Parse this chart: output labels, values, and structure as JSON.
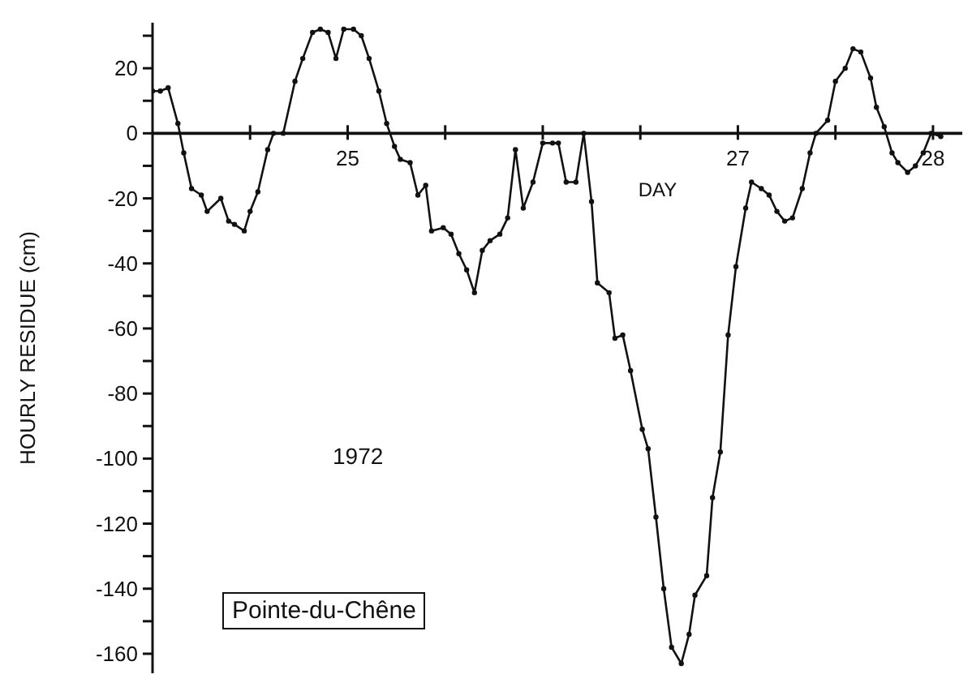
{
  "chart_data": {
    "type": "line",
    "xlabel": "DAY",
    "ylabel": "HOURLY RESIDUE (cm)",
    "annotations": [
      "1972",
      "Pointe-du-Chêne"
    ],
    "xlim": [
      24,
      28.15
    ],
    "ylim": [
      -166,
      34
    ],
    "xticks": [
      {
        "value": 24.5,
        "label": null
      },
      25,
      {
        "value": 25.5,
        "label": null
      },
      {
        "value": 26,
        "label": null
      },
      {
        "value": 26.5,
        "label": null
      },
      27,
      {
        "value": 27.5,
        "label": null
      },
      28
    ],
    "yticks": [
      {
        "value": -160,
        "label": "-160"
      },
      {
        "value": -150,
        "label": null
      },
      {
        "value": -140,
        "label": "-140"
      },
      {
        "value": -130,
        "label": null
      },
      {
        "value": -120,
        "label": "-120"
      },
      {
        "value": -110,
        "label": null
      },
      {
        "value": -100,
        "label": "-100"
      },
      {
        "value": -90,
        "label": null
      },
      {
        "value": -80,
        "label": "-80"
      },
      {
        "value": -70,
        "label": null
      },
      {
        "value": -60,
        "label": "-60"
      },
      {
        "value": -50,
        "label": null
      },
      {
        "value": -40,
        "label": "-40"
      },
      {
        "value": -30,
        "label": null
      },
      {
        "value": -20,
        "label": "-20"
      },
      {
        "value": -10,
        "label": null
      },
      0,
      {
        "value": 10,
        "label": null
      },
      20,
      {
        "value": 30,
        "label": null
      }
    ],
    "grid": false,
    "legend": false,
    "marker": "circle",
    "line_style": "solid",
    "x": [
      24.0,
      24.04,
      24.08,
      24.13,
      24.16,
      24.2,
      24.25,
      24.28,
      24.35,
      24.39,
      24.42,
      24.47,
      24.5,
      24.54,
      24.59,
      24.62,
      24.67,
      24.73,
      24.77,
      24.82,
      24.86,
      24.9,
      24.94,
      24.98,
      25.03,
      25.07,
      25.11,
      25.16,
      25.2,
      25.24,
      25.27,
      25.32,
      25.36,
      25.4,
      25.43,
      25.49,
      25.53,
      25.57,
      25.61,
      25.65,
      25.69,
      25.73,
      25.78,
      25.82,
      25.86,
      25.9,
      25.95,
      26.0,
      26.05,
      26.08,
      26.12,
      26.17,
      26.21,
      26.25,
      26.28,
      26.34,
      26.37,
      26.41,
      26.45,
      26.51,
      26.54,
      26.58,
      26.62,
      26.66,
      26.71,
      26.75,
      26.78,
      26.84,
      26.87,
      26.91,
      26.95,
      26.99,
      27.04,
      27.07,
      27.12,
      27.16,
      27.2,
      27.24,
      27.28,
      27.33,
      27.37,
      27.4,
      27.46,
      27.5,
      27.55,
      27.59,
      27.63,
      27.68,
      27.71,
      27.75,
      27.79,
      27.82,
      27.87,
      27.91,
      27.95,
      27.99,
      28.04
    ],
    "series": [
      {
        "color": "#111111",
        "values": [
          13,
          13,
          14,
          3,
          -6,
          -17,
          -19,
          -24,
          -20,
          -27,
          -28,
          -30,
          -24,
          -18,
          -5,
          0,
          0,
          16,
          23,
          31,
          32,
          31,
          23,
          32,
          32,
          30,
          23,
          13,
          3,
          -4,
          -8,
          -9,
          -19,
          -16,
          -30,
          -29,
          -31,
          -37,
          -42,
          -49,
          -36,
          -33,
          -31,
          -26,
          -5,
          -23,
          -15,
          -3,
          -3,
          -3,
          -15,
          -15,
          0,
          -21,
          -46,
          -49,
          -63,
          -62,
          -73,
          -91,
          -97,
          -118,
          -140,
          -158,
          -163,
          -154,
          -142,
          -136,
          -112,
          -98,
          -62,
          -41,
          -23,
          -15,
          -17,
          -19,
          -24,
          -27,
          -26,
          -17,
          -6,
          0,
          4,
          16,
          20,
          26,
          25,
          17,
          8,
          2,
          -6,
          -9,
          -12,
          -10,
          -6,
          0,
          -1
        ]
      }
    ]
  }
}
